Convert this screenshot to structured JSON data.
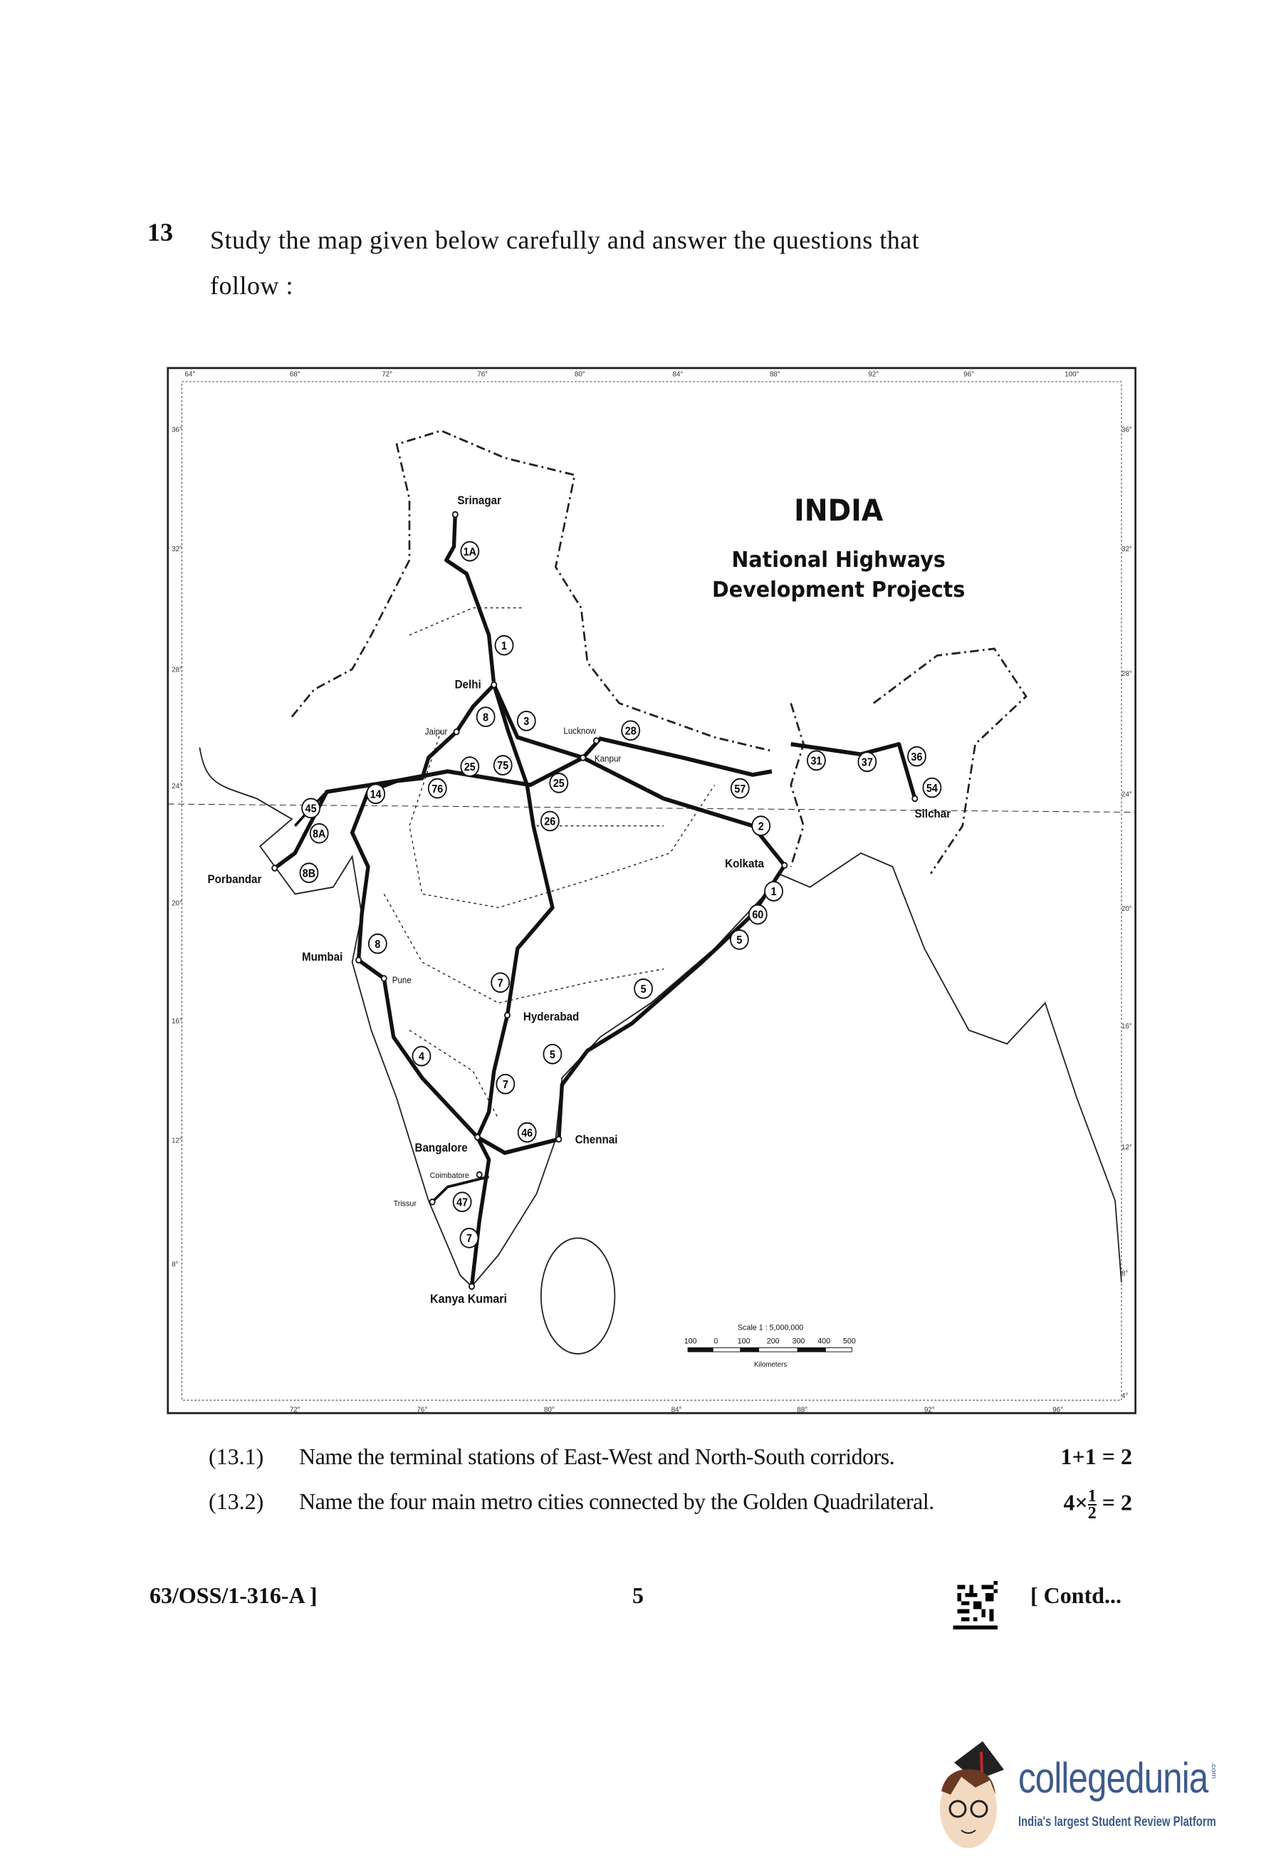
{
  "question": {
    "number": "13",
    "text": "Study the map given below carefully and answer the questions that follow :"
  },
  "map": {
    "title": "INDIA",
    "subtitle_line1": "National Highways",
    "subtitle_line2": "Development Projects",
    "longitude_top": [
      "64°",
      "68°",
      "72°",
      "76°",
      "80°",
      "84°",
      "88°",
      "92°",
      "96°",
      "100°"
    ],
    "longitude_bottom": [
      "72°",
      "76°",
      "80°",
      "84°",
      "88°",
      "92°",
      "96°"
    ],
    "latitude_left": [
      "36°",
      "32°",
      "28°",
      "24°",
      "20°",
      "16°",
      "12°",
      "8°"
    ],
    "latitude_right": [
      "36°",
      "32°",
      "28°",
      "24°",
      "20°",
      "16°",
      "12°",
      "8°",
      "4°"
    ],
    "cities": [
      "Srinagar",
      "Delhi",
      "Jaipur",
      "Lucknow",
      "Kanpur",
      "Porbandar",
      "Mumbai",
      "Pune",
      "Hyderabad",
      "Kolkata",
      "Bangalore",
      "Chennai",
      "Coimbatore",
      "Trissur",
      "Kanya Kumari",
      "Silchar"
    ],
    "highway_numbers": [
      "1A",
      "1",
      "8",
      "3",
      "28",
      "25",
      "75",
      "76",
      "14",
      "25",
      "45",
      "8A",
      "8B",
      "57",
      "2",
      "26",
      "31",
      "37",
      "36",
      "54",
      "60",
      "5",
      "8",
      "7",
      "5",
      "4",
      "5",
      "7",
      "46",
      "47",
      "7",
      "1"
    ],
    "scale": {
      "title": "Scale 1 : 5,000,000",
      "ticks": [
        "100",
        "0",
        "100",
        "200",
        "300",
        "400",
        "500"
      ],
      "unit": "Kilometers"
    }
  },
  "subquestions": [
    {
      "number": "(13.1)",
      "text": "Name the terminal stations of East-West and North-South corridors.",
      "marks": "1+1 = 2"
    },
    {
      "number": "(13.2)",
      "text": "Name the four main metro cities connected by the Golden Quadrilateral.",
      "marks_prefix": "4×",
      "marks_num": "1",
      "marks_den": "2",
      "marks_suffix": "= 2"
    }
  ],
  "footer": {
    "code": "63/OSS/1-316-A ]",
    "page": "5",
    "contd": "[ Contd..."
  },
  "watermark": {
    "brand": "collegedunia",
    "domain": ".com",
    "tagline": "India's largest Student Review Platform",
    "brand_color": "#3d5a8c"
  }
}
